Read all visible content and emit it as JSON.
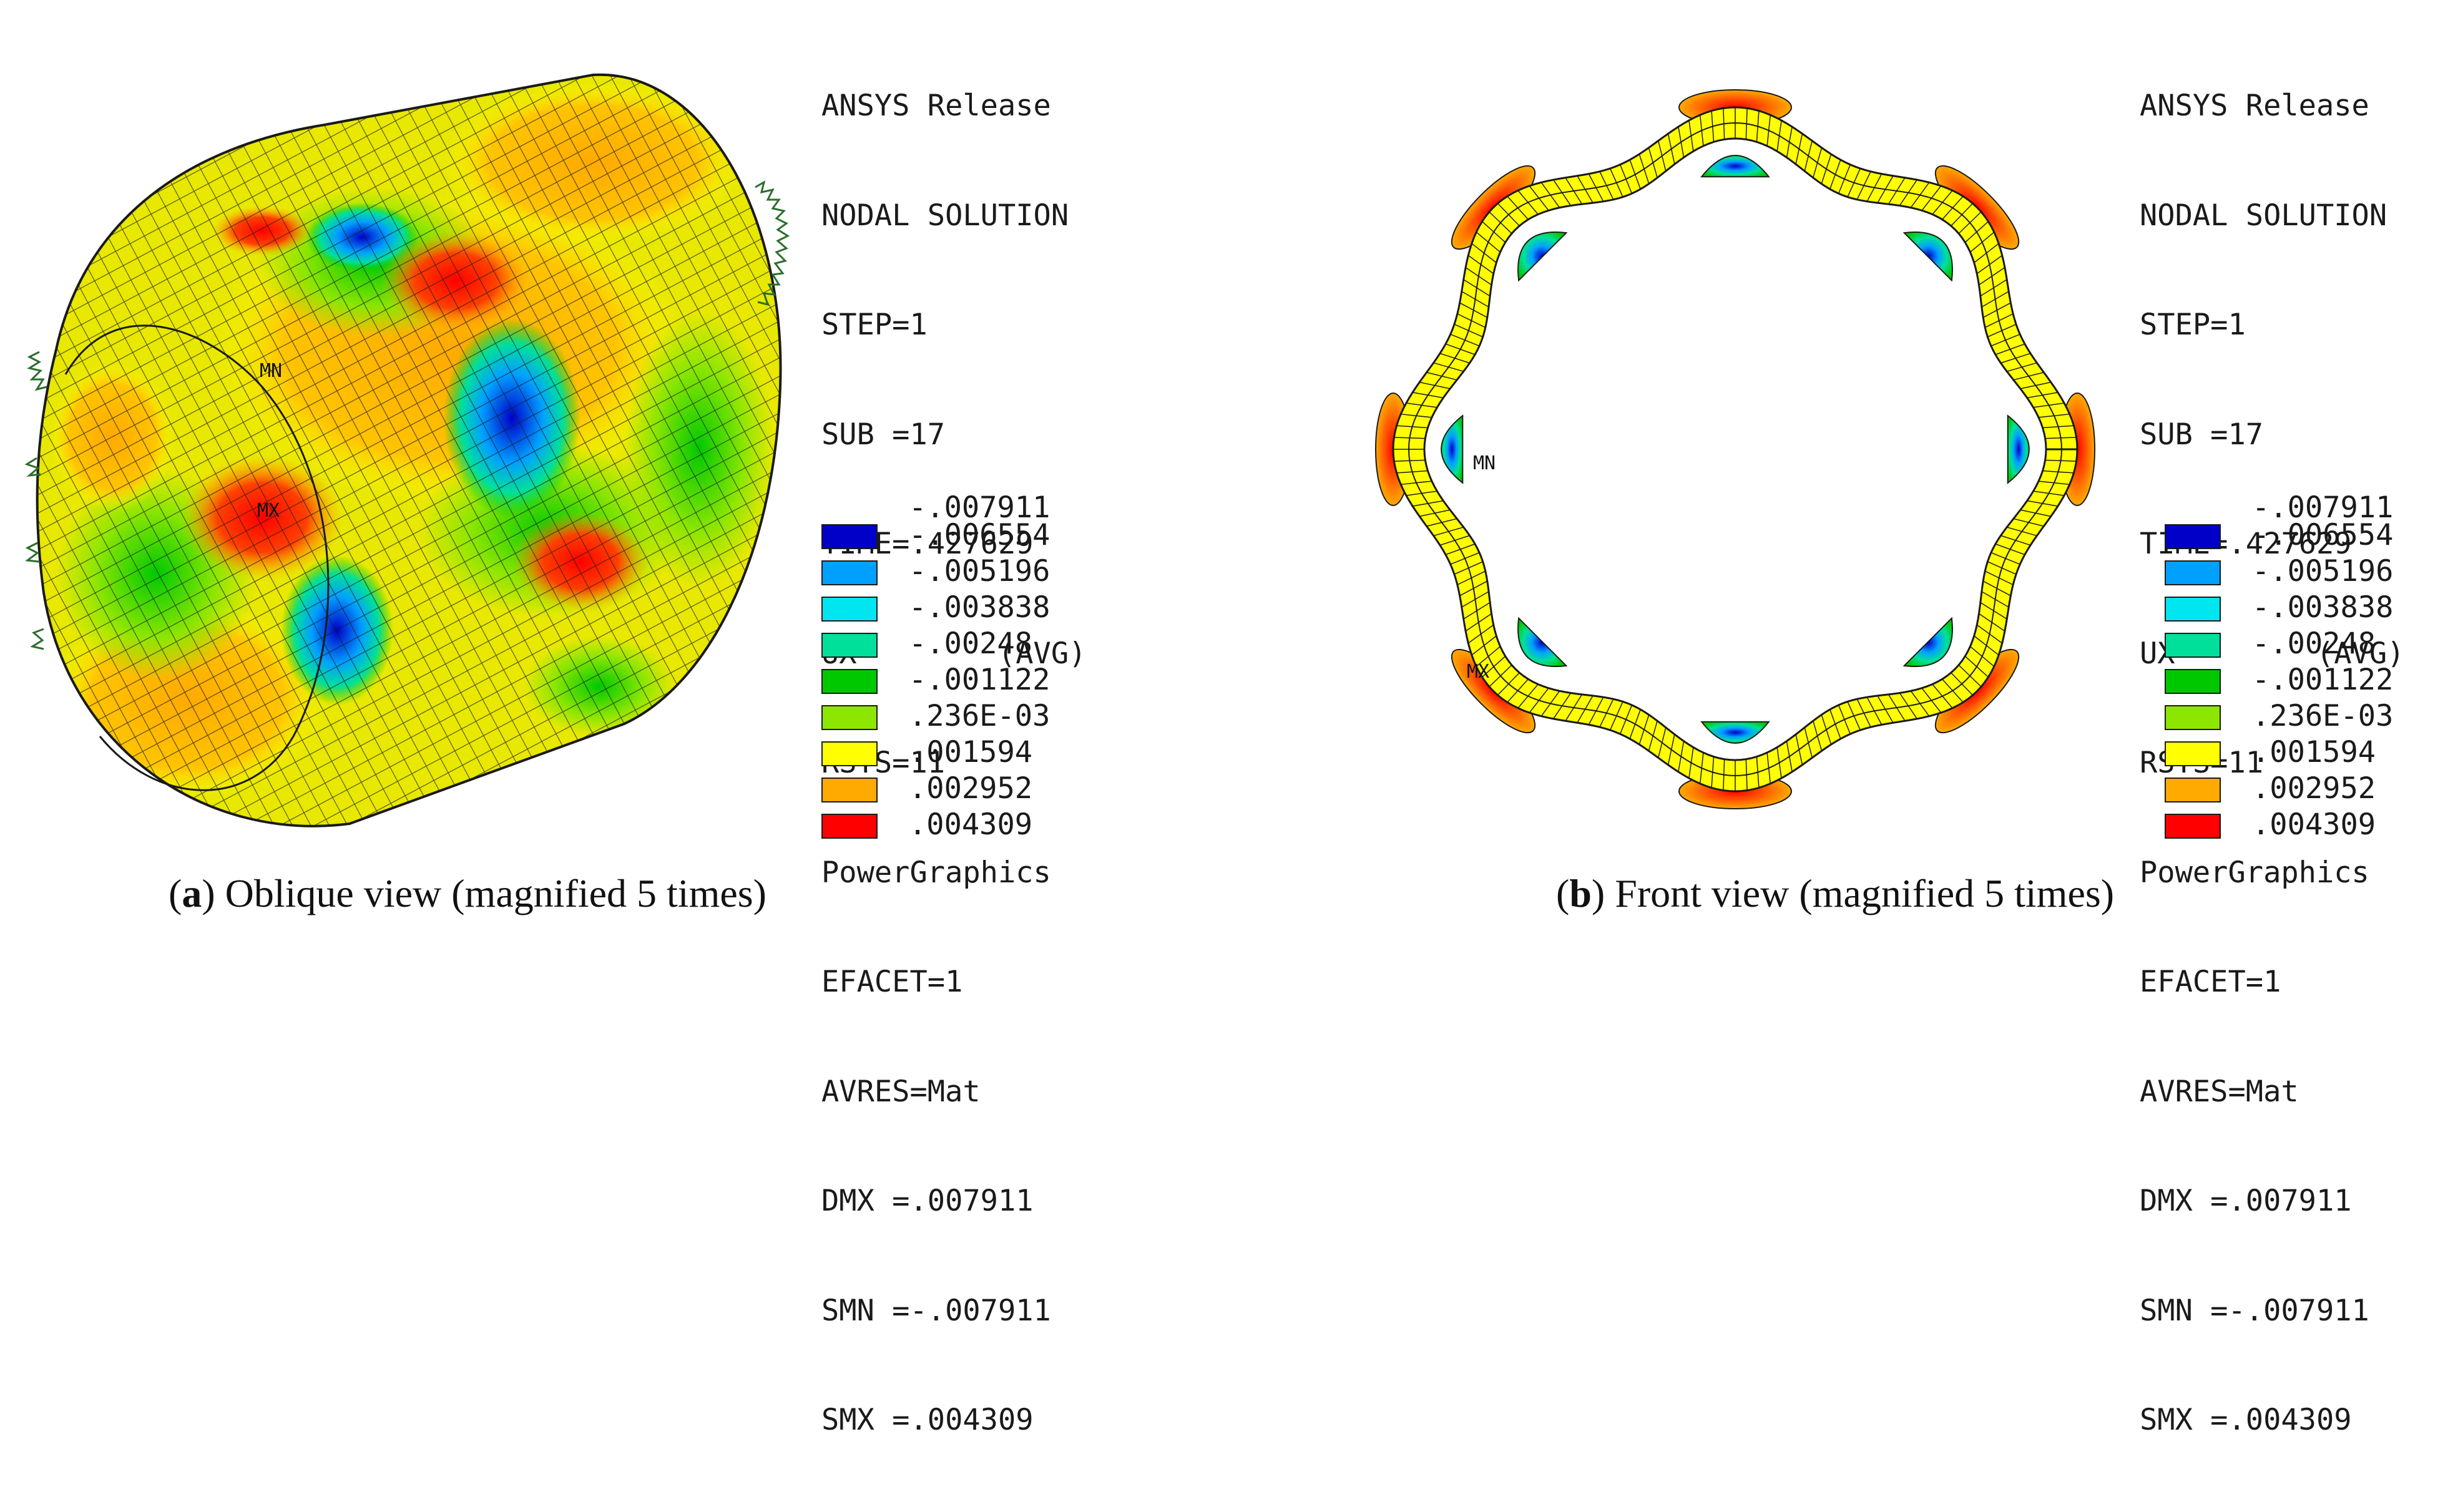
{
  "panels": [
    {
      "id": "a",
      "info_lines": [
        "ANSYS Release",
        "NODAL SOLUTION",
        "STEP=1",
        "SUB =17",
        "TIME=.427629",
        "UX        (AVG)",
        "RSYS=11",
        "PowerGraphics",
        "EFACET=1",
        "AVRES=Mat",
        "DMX =.007911",
        "SMN =-.007911",
        "SMX =.004309"
      ],
      "legend_top": "-.007911",
      "legend": [
        {
          "label": "-.006554",
          "color": "#0000c8"
        },
        {
          "label": "-.005196",
          "color": "#00a0ff"
        },
        {
          "label": "-.003838",
          "color": "#00e6f0"
        },
        {
          "label": "-.00248",
          "color": "#00e09a"
        },
        {
          "label": "-.001122",
          "color": "#00c800"
        },
        {
          "label": ".236E-03",
          "color": "#8ce600"
        },
        {
          "label": ".001594",
          "color": "#ffff00"
        },
        {
          "label": ".002952",
          "color": "#ffaa00"
        },
        {
          "label": ".004309",
          "color": "#ff0000"
        }
      ],
      "marks": {
        "min": "MN",
        "max": "MX"
      },
      "caption_letter": "a",
      "caption_text": "Oblique view (magnified 5 times)"
    },
    {
      "id": "b",
      "info_lines": [
        "ANSYS Release",
        "NODAL SOLUTION",
        "STEP=1",
        "SUB =17",
        "TIME=.427629",
        "UX        (AVG)",
        "RSYS=11",
        "PowerGraphics",
        "EFACET=1",
        "AVRES=Mat",
        "DMX =.007911",
        "SMN =-.007911",
        "SMX =.004309"
      ],
      "legend_top": "-.007911",
      "legend": [
        {
          "label": "-.006554",
          "color": "#0000c8"
        },
        {
          "label": "-.005196",
          "color": "#00a0ff"
        },
        {
          "label": "-.003838",
          "color": "#00e6f0"
        },
        {
          "label": "-.00248",
          "color": "#00e09a"
        },
        {
          "label": "-.001122",
          "color": "#00c800"
        },
        {
          "label": ".236E-03",
          "color": "#8ce600"
        },
        {
          "label": ".001594",
          "color": "#ffff00"
        },
        {
          "label": ".002952",
          "color": "#ffaa00"
        },
        {
          "label": ".004309",
          "color": "#ff0000"
        }
      ],
      "marks": {
        "min": "MN",
        "max": "MX"
      },
      "caption_letter": "b",
      "caption_text": "Front view (magnified 5 times)"
    }
  ]
}
